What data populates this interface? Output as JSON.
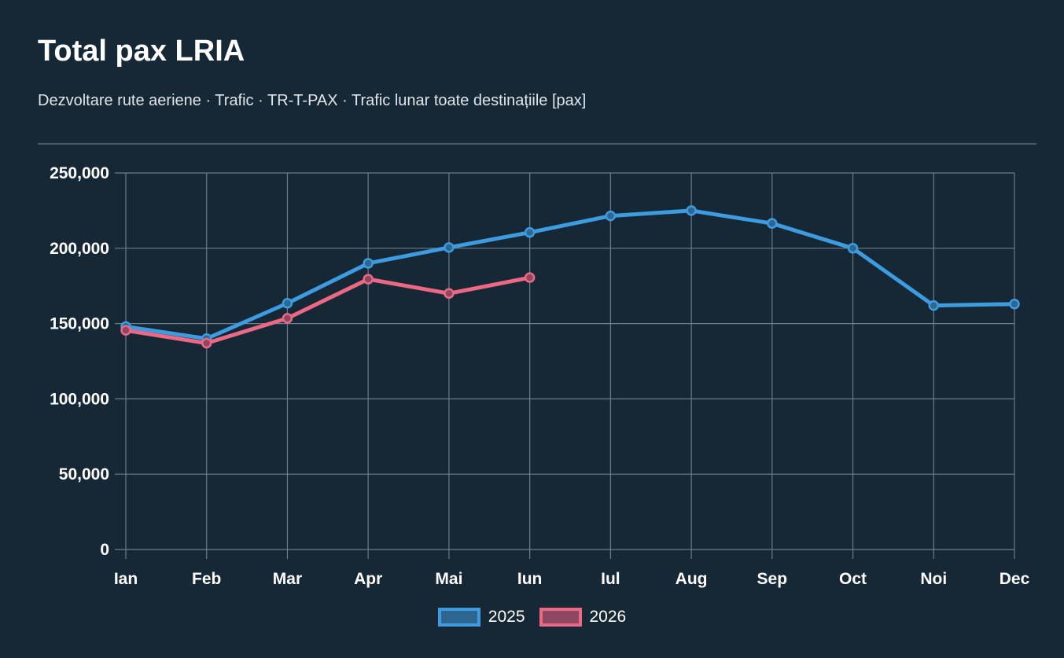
{
  "header": {
    "title": "Total pax LRIA",
    "subtitle": "Dezvoltare rute aeriene · Trafic · TR-T-PAX · Trafic lunar toate destinațiile [pax]"
  },
  "colors": {
    "background": "#162835",
    "grid": "#6a7d8b",
    "series_2025": "#3d9be0",
    "series_2025_fill": "#2d6791",
    "series_2026": "#ec6884",
    "series_2026_fill": "#8e4761"
  },
  "chart_data": {
    "type": "line",
    "title": "Total pax LRIA",
    "subtitle": "Dezvoltare rute aeriene · Trafic · TR-T-PAX · Trafic lunar toate destinațiile [pax]",
    "categories": [
      "Ian",
      "Feb",
      "Mar",
      "Apr",
      "Mai",
      "Iun",
      "Iul",
      "Aug",
      "Sep",
      "Oct",
      "Noi",
      "Dec"
    ],
    "y_ticks": [
      "0",
      "50,000",
      "100,000",
      "150,000",
      "200,000",
      "250,000"
    ],
    "ylim": [
      0,
      250000
    ],
    "grid": true,
    "legend_position": "bottom",
    "series": [
      {
        "name": "2025",
        "color": "#3d9be0",
        "values": [
          148000,
          140000,
          163500,
          190000,
          200500,
          210500,
          221500,
          225000,
          216500,
          200000,
          162000,
          163000
        ]
      },
      {
        "name": "2026",
        "color": "#ec6884",
        "values": [
          145500,
          137000,
          153500,
          179500,
          170000,
          180500,
          null,
          null,
          null,
          null,
          null,
          null
        ]
      }
    ]
  }
}
